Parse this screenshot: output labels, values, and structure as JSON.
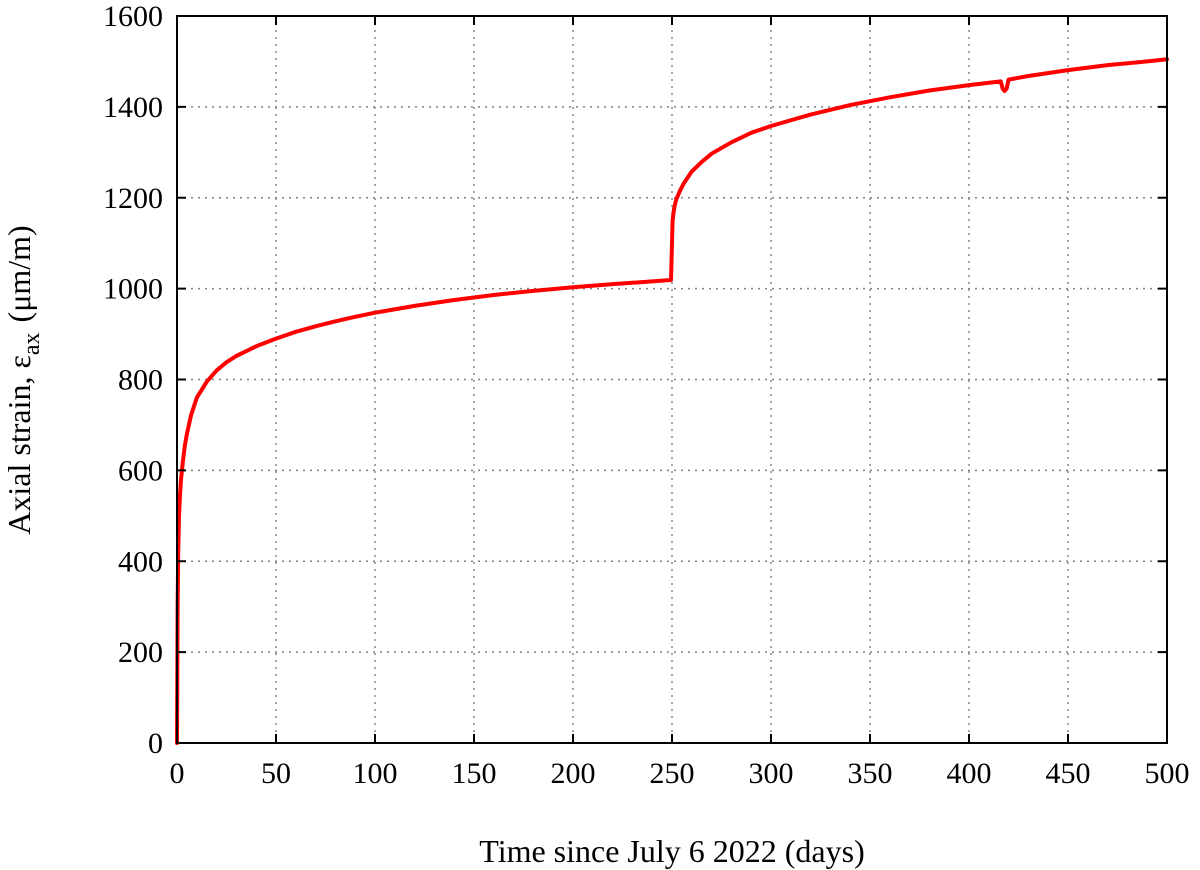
{
  "chart_data": {
    "type": "line",
    "title": "",
    "xlabel": "Time since July 6 2022 (days)",
    "ylabel_main": "Axial strain, ε",
    "ylabel_sub": "ax",
    "ylabel_unit": "(μm/m)",
    "xlim": [
      0,
      500
    ],
    "ylim": [
      0,
      1600
    ],
    "xticks": [
      0,
      50,
      100,
      150,
      200,
      250,
      300,
      350,
      400,
      450,
      500
    ],
    "yticks": [
      0,
      200,
      400,
      600,
      800,
      1000,
      1200,
      1400,
      1600
    ],
    "grid": true,
    "legend": "none",
    "series": [
      {
        "color": "#ff0000",
        "x": [
          0,
          0.3,
          0.6,
          1,
          1.5,
          2,
          3,
          4,
          5,
          7,
          10,
          15,
          20,
          25,
          30,
          40,
          50,
          60,
          70,
          80,
          90,
          100,
          120,
          140,
          160,
          180,
          200,
          220,
          240,
          249.5,
          250,
          250.3,
          251,
          252,
          254,
          256,
          260,
          265,
          270,
          280,
          290,
          300,
          320,
          340,
          360,
          380,
          400,
          416,
          417,
          418,
          419,
          420,
          430,
          450,
          470,
          490,
          500
        ],
        "y": [
          0,
          300,
          420,
          500,
          545,
          580,
          620,
          655,
          680,
          720,
          760,
          795,
          820,
          838,
          852,
          873,
          890,
          905,
          917,
          928,
          938,
          947,
          962,
          975,
          986,
          995,
          1003,
          1010,
          1016,
          1019,
          1100,
          1150,
          1175,
          1195,
          1215,
          1232,
          1258,
          1279,
          1297,
          1322,
          1343,
          1358,
          1383,
          1404,
          1421,
          1436,
          1448,
          1456,
          1440,
          1435,
          1440,
          1460,
          1468,
          1481,
          1492,
          1500,
          1505
        ]
      }
    ]
  }
}
